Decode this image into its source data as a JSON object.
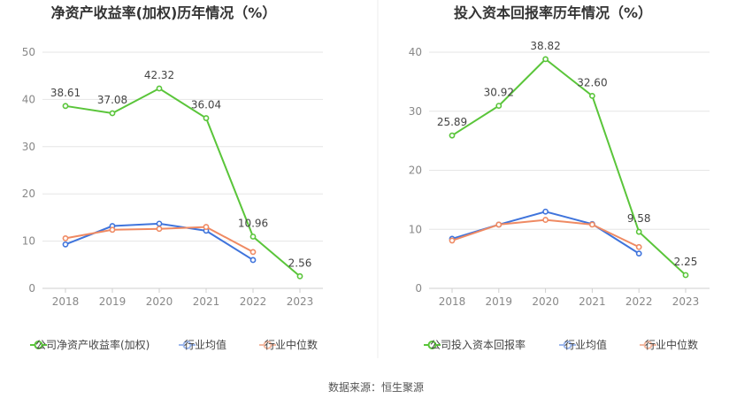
{
  "chart_data": [
    {
      "type": "line",
      "title": "净资产收益率(加权)历年情况（%）",
      "categories": [
        "2018",
        "2019",
        "2020",
        "2021",
        "2022",
        "2023"
      ],
      "ylim": [
        0,
        50
      ],
      "yticks": [
        0,
        10,
        20,
        30,
        40,
        50
      ],
      "grid": true,
      "legend_placement": "bottom",
      "series": [
        {
          "name": "公司净资产收益率(加权)",
          "color": "#5ac53a",
          "values": [
            38.61,
            37.08,
            42.32,
            36.04,
            10.96,
            2.56
          ],
          "labels": [
            "38.61",
            "37.08",
            "42.32",
            "36.04",
            "10.96",
            "2.56"
          ]
        },
        {
          "name": "行业均值",
          "color": "#3f74dc",
          "values": [
            9.3,
            13.2,
            13.7,
            12.2,
            6.0,
            null
          ]
        },
        {
          "name": "行业中位数",
          "color": "#ef8a63",
          "values": [
            10.6,
            12.4,
            12.6,
            13.0,
            7.7,
            null
          ]
        }
      ]
    },
    {
      "type": "line",
      "title": "投入资本回报率历年情况（%）",
      "categories": [
        "2018",
        "2019",
        "2020",
        "2021",
        "2022",
        "2023"
      ],
      "ylim": [
        0,
        40
      ],
      "yticks": [
        0,
        10,
        20,
        30,
        40
      ],
      "grid": true,
      "legend_placement": "bottom",
      "series": [
        {
          "name": "公司投入资本回报率",
          "color": "#5ac53a",
          "values": [
            25.89,
            30.92,
            38.82,
            32.6,
            9.58,
            2.25
          ],
          "labels": [
            "25.89",
            "30.92",
            "38.82",
            "32.60",
            "9.58",
            "2.25"
          ]
        },
        {
          "name": "行业均值",
          "color": "#3f74dc",
          "values": [
            8.4,
            10.8,
            13.0,
            10.9,
            5.9,
            null
          ]
        },
        {
          "name": "行业中位数",
          "color": "#ef8a63",
          "values": [
            8.1,
            10.8,
            11.6,
            10.8,
            7.0,
            null
          ]
        }
      ]
    }
  ],
  "footer": {
    "source": "数据来源：恒生聚源"
  }
}
